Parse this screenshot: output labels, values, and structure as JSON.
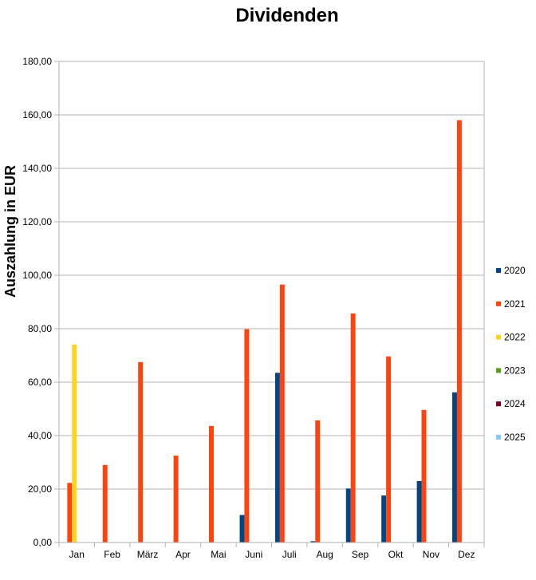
{
  "chart_data": {
    "type": "bar",
    "title": "Dividenden",
    "xlabel": "",
    "ylabel": "Auszahlung in EUR",
    "ylim": [
      0,
      180
    ],
    "yticks": [
      "0,00",
      "20,00",
      "40,00",
      "60,00",
      "80,00",
      "100,00",
      "120,00",
      "140,00",
      "160,00",
      "180,00"
    ],
    "grid": true,
    "legend_position": "right",
    "categories": [
      "Jan",
      "Feb",
      "März",
      "Apr",
      "Mai",
      "Juni",
      "Juli",
      "Aug",
      "Sep",
      "Okt",
      "Nov",
      "Dez"
    ],
    "series": [
      {
        "name": "2020",
        "color": "#004586",
        "values": [
          0,
          0,
          0,
          0,
          0,
          10.3,
          63.5,
          0.5,
          20.2,
          17.6,
          23.0,
          56.2
        ]
      },
      {
        "name": "2021",
        "color": "#ff420e",
        "values": [
          22.3,
          29.0,
          67.5,
          32.5,
          43.6,
          79.8,
          96.5,
          45.7,
          85.7,
          69.6,
          49.6,
          158.0
        ]
      },
      {
        "name": "2022",
        "color": "#ffd320",
        "values": [
          74.1,
          0,
          0,
          0,
          0,
          0,
          0,
          0,
          0,
          0,
          0,
          0
        ]
      },
      {
        "name": "2023",
        "color": "#579d1c",
        "values": [
          0,
          0,
          0,
          0,
          0,
          0,
          0,
          0,
          0,
          0,
          0,
          0
        ]
      },
      {
        "name": "2024",
        "color": "#7e0021",
        "values": [
          0,
          0,
          0,
          0,
          0,
          0,
          0,
          0,
          0,
          0,
          0,
          0
        ]
      },
      {
        "name": "2025",
        "color": "#83caff",
        "values": [
          0,
          0,
          0,
          0,
          0,
          0,
          0,
          0,
          0,
          0,
          0,
          0
        ]
      }
    ]
  }
}
